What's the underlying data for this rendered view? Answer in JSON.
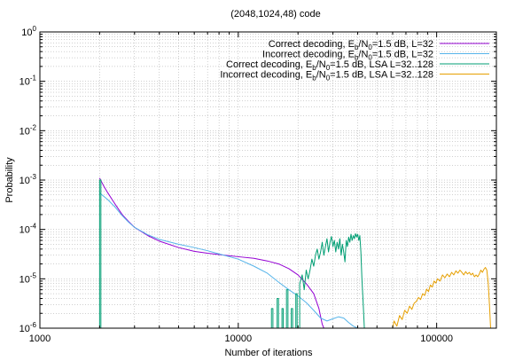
{
  "chart_data": {
    "type": "line",
    "title": "(2048,1024,48) code",
    "xlabel": "Number of iterations",
    "ylabel": "Probability",
    "xscale": "log",
    "yscale": "log",
    "xlim": [
      1000,
      200000
    ],
    "ylim": [
      1e-06,
      1
    ],
    "grid": true,
    "legend_position": "top-right",
    "x_ticks": [
      {
        "value": 1000,
        "label": "1000"
      },
      {
        "value": 10000,
        "label": "10000"
      },
      {
        "value": 100000,
        "label": "100000"
      }
    ],
    "y_ticks": [
      {
        "value": 1,
        "base": "10",
        "exp": "0"
      },
      {
        "value": 0.1,
        "base": "10",
        "exp": "-1"
      },
      {
        "value": 0.01,
        "base": "10",
        "exp": "-2"
      },
      {
        "value": 0.001,
        "base": "10",
        "exp": "-3"
      },
      {
        "value": 0.0001,
        "base": "10",
        "exp": "-4"
      },
      {
        "value": 1e-05,
        "base": "10",
        "exp": "-5"
      },
      {
        "value": 1e-06,
        "base": "10",
        "exp": "-6"
      }
    ],
    "series": [
      {
        "name": "Correct decoding, Eb/N0=1.5 dB, L=32",
        "legend": {
          "pre": "Correct decoding, E",
          "sub1": "b",
          "mid": "/N",
          "sub2": "0",
          "post": "=1.5 dB, L=32"
        },
        "color": "#9400d3",
        "points": [
          [
            2000,
            0.0011
          ],
          [
            2100,
            0.00075
          ],
          [
            2200,
            0.00055
          ],
          [
            2400,
            0.00032
          ],
          [
            2600,
            0.0002
          ],
          [
            2800,
            0.000145
          ],
          [
            3000,
            0.00011
          ],
          [
            3500,
            7.5e-05
          ],
          [
            4000,
            5.8e-05
          ],
          [
            5000,
            4.3e-05
          ],
          [
            6000,
            3.6e-05
          ],
          [
            7000,
            3.3e-05
          ],
          [
            8000,
            3.1e-05
          ],
          [
            10000,
            2.8e-05
          ],
          [
            12000,
            2.6e-05
          ],
          [
            14000,
            2.3e-05
          ],
          [
            16000,
            2e-05
          ],
          [
            18000,
            1.6e-05
          ],
          [
            20000,
            1.2e-05
          ],
          [
            22000,
            8e-06
          ],
          [
            24000,
            5e-06
          ],
          [
            25500,
            2.5e-06
          ],
          [
            26500,
            1.2e-06
          ],
          [
            27000,
            1e-06
          ]
        ]
      },
      {
        "name": "Incorrect decoding, Eb/N0=1.5 dB, L=32",
        "legend": {
          "pre": "Incorrect decoding, E",
          "sub1": "b",
          "mid": "/N",
          "sub2": "0",
          "post": "=1.5 dB, L=32"
        },
        "color": "#56b4e9",
        "points": [
          [
            2000,
            0.00055
          ],
          [
            2200,
            0.0004
          ],
          [
            2400,
            0.00028
          ],
          [
            2600,
            0.00019
          ],
          [
            2800,
            0.00014
          ],
          [
            3000,
            0.00011
          ],
          [
            3500,
            7.8e-05
          ],
          [
            4000,
            6.3e-05
          ],
          [
            5000,
            5e-05
          ],
          [
            6000,
            4.3e-05
          ],
          [
            7000,
            3.7e-05
          ],
          [
            8000,
            3.2e-05
          ],
          [
            10000,
            2.5e-05
          ],
          [
            12000,
            1.8e-05
          ],
          [
            14000,
            1.3e-05
          ],
          [
            16000,
            8.5e-06
          ],
          [
            18000,
            6e-06
          ],
          [
            20000,
            4.5e-06
          ],
          [
            22000,
            3.3e-06
          ],
          [
            24000,
            2.3e-06
          ],
          [
            26000,
            1.6e-06
          ],
          [
            28000,
            1.4e-06
          ],
          [
            30000,
            1.55e-06
          ],
          [
            32000,
            1.7e-06
          ],
          [
            34000,
            1.6e-06
          ],
          [
            36000,
            1.3e-06
          ],
          [
            38000,
            1.1e-06
          ],
          [
            40000,
            1e-06
          ]
        ]
      },
      {
        "name": "Correct decoding, Eb/N0=1.5 dB, LSA L=32..128",
        "legend": {
          "pre": "Correct decoding, E",
          "sub1": "b",
          "mid": "/N",
          "sub2": "0",
          "post": "=1.5 dB, LSA L=32..128"
        },
        "color": "#009e73",
        "points": [
          [
            2000,
            1e-06
          ],
          [
            2000,
            0.001
          ],
          [
            2030,
            0.001
          ],
          [
            2030,
            1e-06
          ],
          [
            14700,
            1e-06
          ],
          [
            14700,
            2.5e-06
          ],
          [
            14950,
            2.5e-06
          ],
          [
            14950,
            1e-06
          ],
          [
            15700,
            1e-06
          ],
          [
            15700,
            4e-06
          ],
          [
            15950,
            4e-06
          ],
          [
            15950,
            1e-06
          ],
          [
            16600,
            1e-06
          ],
          [
            16600,
            2.5e-06
          ],
          [
            16850,
            2.5e-06
          ],
          [
            16850,
            1e-06
          ],
          [
            17500,
            1e-06
          ],
          [
            17500,
            6e-06
          ],
          [
            17800,
            6e-06
          ],
          [
            17800,
            1e-06
          ],
          [
            18500,
            1e-06
          ],
          [
            18500,
            2.5e-06
          ],
          [
            18800,
            2.5e-06
          ],
          [
            18800,
            1e-06
          ],
          [
            19500,
            1e-06
          ],
          [
            19500,
            5e-06
          ],
          [
            19800,
            5e-06
          ],
          [
            19800,
            1e-06
          ],
          [
            20400,
            1e-06
          ],
          [
            20400,
            8e-06
          ],
          [
            21000,
            1.2e-05
          ],
          [
            21500,
            6e-06
          ],
          [
            22000,
            1.5e-05
          ],
          [
            22500,
            1e-05
          ],
          [
            23000,
            1.5e-05
          ],
          [
            23500,
            2.5e-05
          ],
          [
            24000,
            1.8e-05
          ],
          [
            24500,
            3e-05
          ],
          [
            25000,
            4e-05
          ],
          [
            25500,
            2.5e-05
          ],
          [
            26000,
            3.5e-05
          ],
          [
            26500,
            5.5e-05
          ],
          [
            27000,
            3e-05
          ],
          [
            27500,
            4.5e-05
          ],
          [
            28000,
            6.5e-05
          ],
          [
            28500,
            3.5e-05
          ],
          [
            29000,
            5.5e-05
          ],
          [
            29500,
            7.2e-05
          ],
          [
            30000,
            4.5e-05
          ],
          [
            30500,
            6e-05
          ],
          [
            31000,
            3.5e-05
          ],
          [
            31500,
            5.5e-05
          ],
          [
            32000,
            4e-05
          ],
          [
            32500,
            6.5e-05
          ],
          [
            33000,
            3e-05
          ],
          [
            33500,
            5e-05
          ],
          [
            34000,
            3.5e-05
          ],
          [
            34500,
            2.2e-05
          ],
          [
            35000,
            6e-05
          ],
          [
            35500,
            4.5e-05
          ],
          [
            36000,
            7e-05
          ],
          [
            36500,
            5.5e-05
          ],
          [
            37000,
            8e-05
          ],
          [
            37500,
            6e-05
          ],
          [
            38000,
            7.5e-05
          ],
          [
            38500,
            6.5e-05
          ],
          [
            39000,
            8.2e-05
          ],
          [
            39500,
            7e-05
          ],
          [
            40000,
            8e-05
          ],
          [
            40500,
            6e-05
          ],
          [
            41000,
            7.5e-05
          ],
          [
            41500,
            3.5e-05
          ],
          [
            42000,
            1e-05
          ],
          [
            42500,
            4e-06
          ],
          [
            43000,
            1.5e-06
          ],
          [
            43200,
            1e-06
          ]
        ]
      },
      {
        "name": "Incorrect decoding, Eb/N0=1.5 dB, LSA L=32..128",
        "legend": {
          "pre": "Incorrect decoding, E",
          "sub1": "b",
          "mid": "/N",
          "sub2": "0",
          "post": "=1.5 dB, LSA L=32..128"
        },
        "color": "#e69f00",
        "points": [
          [
            60000,
            1e-06
          ],
          [
            61000,
            1.4e-06
          ],
          [
            63000,
            1.1e-06
          ],
          [
            65000,
            1.8e-06
          ],
          [
            67000,
            1.5e-06
          ],
          [
            69000,
            2.3e-06
          ],
          [
            71000,
            2e-06
          ],
          [
            73000,
            2.8e-06
          ],
          [
            75000,
            2.4e-06
          ],
          [
            77000,
            3.2e-06
          ],
          [
            79000,
            3.5e-06
          ],
          [
            81000,
            4.2e-06
          ],
          [
            83000,
            3.8e-06
          ],
          [
            85000,
            5e-06
          ],
          [
            87000,
            4.6e-06
          ],
          [
            89000,
            6.2e-06
          ],
          [
            91000,
            5.5e-06
          ],
          [
            93000,
            7.5e-06
          ],
          [
            95000,
            6.8e-06
          ],
          [
            97000,
            9e-06
          ],
          [
            99000,
            8.2e-06
          ],
          [
            101000,
            1e-05
          ],
          [
            104000,
            9e-06
          ],
          [
            107000,
            1.2e-05
          ],
          [
            110000,
            1.05e-05
          ],
          [
            113000,
            1.25e-05
          ],
          [
            116000,
            1.1e-05
          ],
          [
            119000,
            1.35e-05
          ],
          [
            122000,
            1.2e-05
          ],
          [
            125000,
            1.45e-05
          ],
          [
            128000,
            1.3e-05
          ],
          [
            131000,
            1.5e-05
          ],
          [
            134000,
            1.35e-05
          ],
          [
            137000,
            1.2e-05
          ],
          [
            140000,
            1.4e-05
          ],
          [
            143000,
            1.25e-05
          ],
          [
            146000,
            1.35e-05
          ],
          [
            149000,
            1.2e-05
          ],
          [
            152000,
            1.3e-05
          ],
          [
            155000,
            1.1e-05
          ],
          [
            158000,
            1.2e-05
          ],
          [
            161000,
            1.1e-05
          ],
          [
            164000,
            1.25e-05
          ],
          [
            167000,
            1.5e-05
          ],
          [
            170000,
            1.35e-05
          ],
          [
            173000,
            1.55e-05
          ],
          [
            176000,
            1.7e-05
          ],
          [
            179000,
            1.5e-05
          ],
          [
            182000,
            8e-06
          ],
          [
            185000,
            2.5e-06
          ],
          [
            187000,
            1e-06
          ]
        ]
      }
    ]
  }
}
